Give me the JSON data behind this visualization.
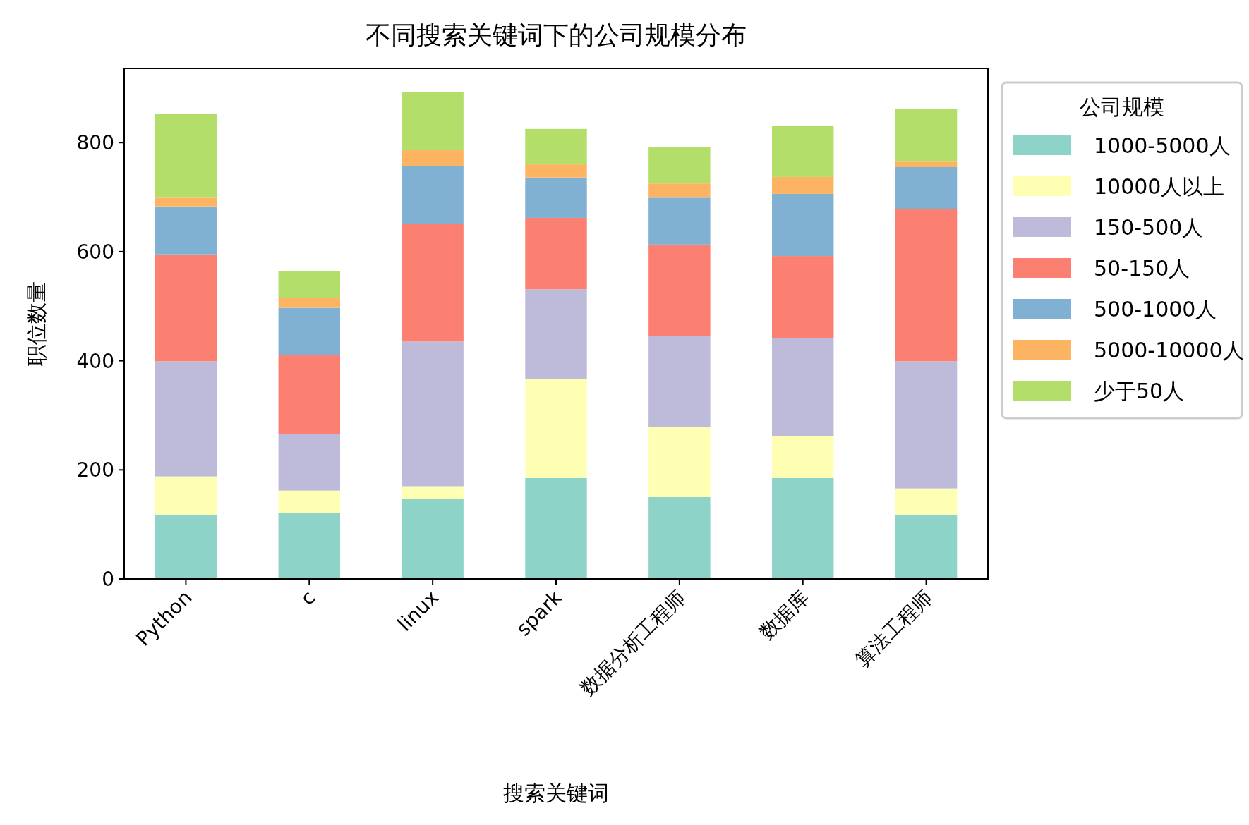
{
  "chart_data": {
    "type": "bar",
    "stacked": true,
    "title": "不同搜索关键词下的公司规模分布",
    "xlabel": "搜索关键词",
    "ylabel": "职位数量",
    "legend_title": "公司规模",
    "legend": "right",
    "categories": [
      "Python",
      "c",
      "linux",
      "spark",
      "数据分析工程师",
      "数据库",
      "算法工程师"
    ],
    "ylim": [
      0,
      936
    ],
    "yticks": [
      0,
      200,
      400,
      600,
      800
    ],
    "series": [
      {
        "name": "1000-5000人",
        "color": "#8dd3c7",
        "values": [
          118,
          121,
          147,
          185,
          150,
          185,
          118
        ]
      },
      {
        "name": "10000人以上",
        "color": "#ffffb3",
        "values": [
          70,
          41,
          23,
          181,
          128,
          77,
          48
        ]
      },
      {
        "name": "150-500人",
        "color": "#bebada",
        "values": [
          211,
          104,
          265,
          165,
          167,
          179,
          233
        ]
      },
      {
        "name": "50-150人",
        "color": "#fb8072",
        "values": [
          196,
          144,
          216,
          131,
          168,
          151,
          279
        ]
      },
      {
        "name": "500-1000人",
        "color": "#80b1d3",
        "values": [
          88,
          87,
          106,
          74,
          86,
          114,
          77
        ]
      },
      {
        "name": "5000-10000人",
        "color": "#fdb462",
        "values": [
          16,
          18,
          29,
          24,
          26,
          31,
          10
        ]
      },
      {
        "name": "少于50人",
        "color": "#b3de69",
        "values": [
          154,
          49,
          107,
          65,
          67,
          94,
          97
        ]
      }
    ]
  }
}
